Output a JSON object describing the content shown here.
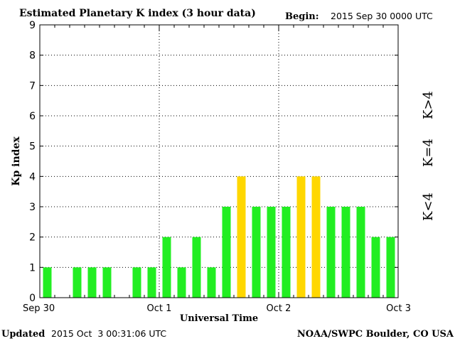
{
  "header": {
    "title": "Estimated Planetary K index (3 hour data)",
    "begin_label": "Begin:",
    "begin_value": "2015 Sep 30 0000 UTC"
  },
  "footer": {
    "updated_label": "Updated",
    "updated_value": "2015 Oct  3 00:31:06 UTC",
    "source": "NOAA/SWPC Boulder, CO USA"
  },
  "legend": {
    "low": "K<4",
    "mid": "K=4",
    "high": "K>4"
  },
  "colors": {
    "low": "#22ee22",
    "mid": "#ffd700",
    "high": "#ff2200",
    "grid": "#000000"
  },
  "chart_data": {
    "type": "bar",
    "title": "Estimated Planetary K index (3 hour data)",
    "xlabel": "Universal Time",
    "ylabel": "Kp index",
    "ylim": [
      0,
      9
    ],
    "yticks": [
      "0",
      "1",
      "2",
      "3",
      "4",
      "5",
      "6",
      "7",
      "8",
      "9"
    ],
    "xticks": [
      "Sep 30",
      "Oct 1",
      "Oct 2",
      "Oct 3"
    ],
    "grid": true,
    "bin_hours": 3,
    "values": [
      1,
      0,
      1,
      1,
      1,
      0,
      1,
      1,
      2,
      1,
      2,
      1,
      3,
      4,
      3,
      3,
      3,
      4,
      4,
      3,
      3,
      3,
      2,
      2
    ]
  }
}
